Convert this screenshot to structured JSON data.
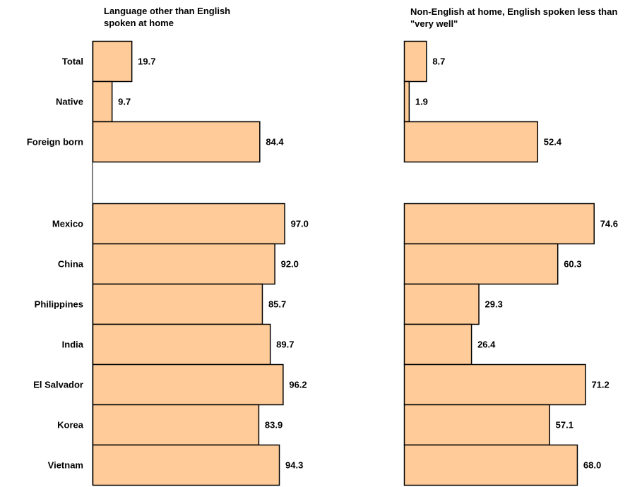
{
  "chart_data": [
    {
      "type": "bar",
      "orientation": "horizontal",
      "title": "Language other than English spoken at home",
      "categories": [
        "Total",
        "Native",
        "Foreign born",
        "Mexico",
        "China",
        "Philippines",
        "India",
        "El Salvador",
        "Korea",
        "Vietnam"
      ],
      "values": [
        19.7,
        9.7,
        84.4,
        97.0,
        92.0,
        85.7,
        89.7,
        96.2,
        83.9,
        94.3
      ],
      "value_labels": [
        "19.7",
        "9.7",
        "84.4",
        "97.0",
        "92.0",
        "85.7",
        "89.7",
        "96.2",
        "83.9",
        "94.3"
      ],
      "xlim": [
        0,
        100
      ],
      "grid": false,
      "bar_color": "#FFCC99"
    },
    {
      "type": "bar",
      "orientation": "horizontal",
      "title": "Non-English at home, English spoken less than \"very well\"",
      "categories": [
        "Total",
        "Native",
        "Foreign born",
        "Mexico",
        "China",
        "Philippines",
        "India",
        "El Salvador",
        "Korea",
        "Vietnam"
      ],
      "values": [
        8.7,
        1.9,
        52.4,
        74.6,
        60.3,
        29.3,
        26.4,
        71.2,
        57.1,
        68.0
      ],
      "value_labels": [
        "8.7",
        "1.9",
        "52.4",
        "74.6",
        "60.3",
        "29.3",
        "26.4",
        "71.2",
        "57.1",
        "68.0"
      ],
      "xlim": [
        0,
        100
      ],
      "grid": false,
      "bar_color": "#FFCC99"
    }
  ]
}
